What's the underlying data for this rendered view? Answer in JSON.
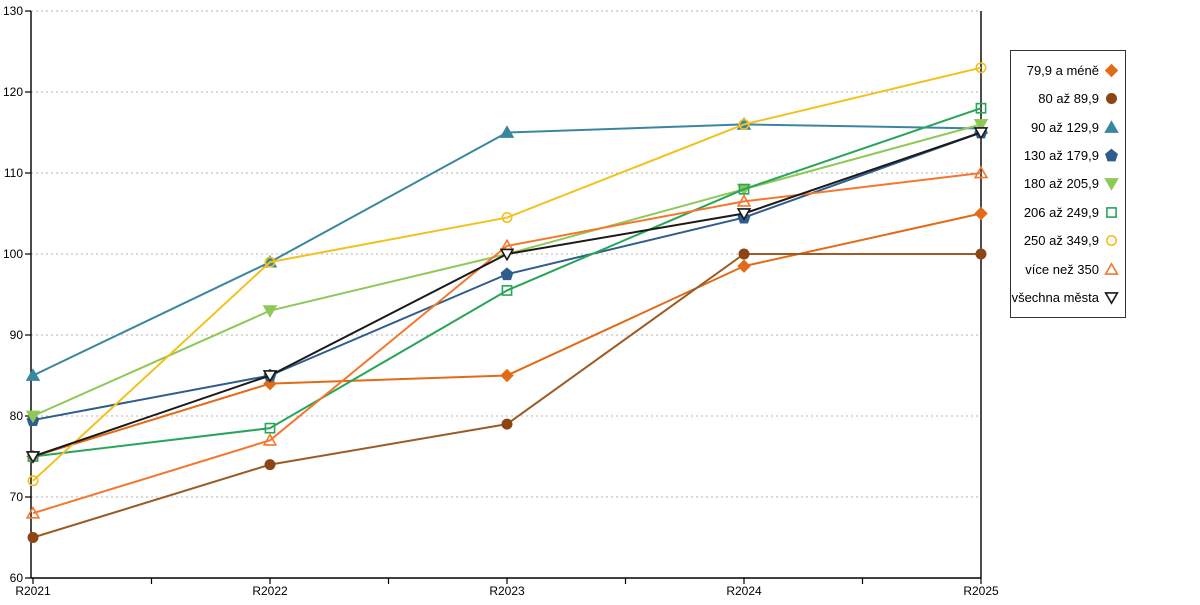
{
  "chart_data": {
    "type": "line",
    "title": "",
    "xlabel": "",
    "ylabel": "",
    "categories": [
      "R2021",
      "R2022",
      "R2023",
      "R2024",
      "R2025"
    ],
    "ylim": [
      60,
      130
    ],
    "ytick_step": 10,
    "yticks": [
      "60",
      "70",
      "80",
      "90",
      "100",
      "110",
      "120",
      "130"
    ],
    "grid": "horizontal-dotted",
    "legend_position": "right-outside",
    "series": [
      {
        "name": "79,9 a méně",
        "marker": "diamond",
        "fill": "filled",
        "color": "#E16B17",
        "values": [
          75,
          84,
          85,
          98.5,
          105
        ]
      },
      {
        "name": "80 až 89,9",
        "marker": "circle",
        "fill": "filled",
        "color": "#8C4514",
        "line_color": "#9C5B24",
        "values": [
          65,
          74,
          79,
          100,
          100
        ]
      },
      {
        "name": "90 až 129,9",
        "marker": "triangle-up",
        "fill": "filled",
        "color": "#3A86A0",
        "values": [
          85,
          99,
          115,
          116,
          115.5
        ]
      },
      {
        "name": "130 až 179,9",
        "marker": "pentagon",
        "fill": "filled",
        "color": "#2F5D8C",
        "values": [
          79.5,
          85,
          97.5,
          104.5,
          115
        ]
      },
      {
        "name": "180 až 205,9",
        "marker": "triangle-down",
        "fill": "filled",
        "color": "#8FC855",
        "values": [
          80,
          93,
          100,
          108,
          116
        ]
      },
      {
        "name": "206 až 249,9",
        "marker": "square",
        "fill": "open",
        "color": "#28A55A",
        "values": [
          75,
          78.5,
          95.5,
          108,
          118
        ]
      },
      {
        "name": "250 až 349,9",
        "marker": "circle",
        "fill": "open",
        "color": "#F2C11D",
        "values": [
          72,
          99,
          104.5,
          116,
          123
        ]
      },
      {
        "name": "více než 350",
        "marker": "triangle-up",
        "fill": "open",
        "color": "#F4772E",
        "values": [
          68,
          77,
          101,
          106.5,
          110
        ]
      },
      {
        "name": "všechna města",
        "marker": "triangle-down",
        "fill": "open-white",
        "color": "#1A1A1A",
        "values": [
          75,
          85,
          100,
          105,
          115
        ]
      }
    ],
    "colors": {
      "grid": "#B3B3B3",
      "axis": "#000000",
      "background": "#FFFFFF"
    }
  }
}
